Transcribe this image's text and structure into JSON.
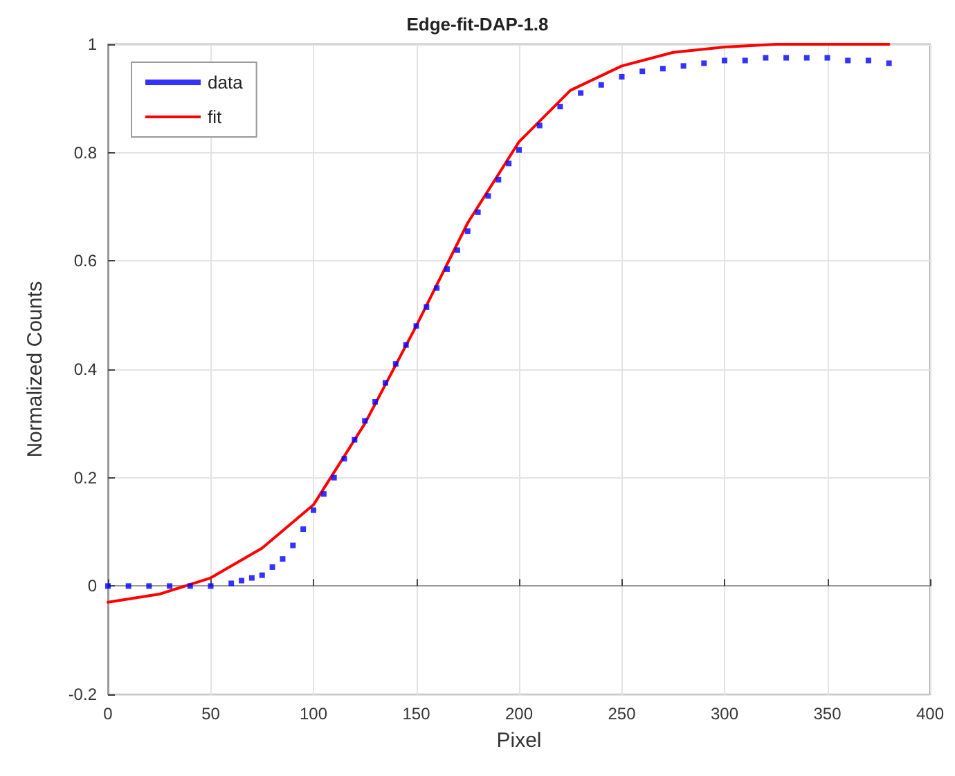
{
  "chart_data": {
    "type": "line",
    "title": "Edge-fit-DAP-1.8",
    "xlabel": "Pixel",
    "ylabel": "Normalized Counts",
    "xlim": [
      0,
      400
    ],
    "xticks": [
      0,
      50,
      100,
      150,
      200,
      250,
      300,
      350,
      400
    ],
    "ylim": [
      -0.2,
      1
    ],
    "yticks": [
      -0.2,
      0,
      0.2,
      0.4,
      0.6,
      0.8,
      1
    ],
    "grid": true,
    "legend": "top left",
    "series": [
      {
        "name": "data",
        "type": "scatter",
        "marker": "square",
        "color": "#0000ff",
        "x": [
          0,
          10,
          20,
          30,
          40,
          50,
          60,
          65,
          70,
          75,
          80,
          85,
          90,
          95,
          100,
          105,
          110,
          115,
          120,
          125,
          130,
          135,
          140,
          145,
          150,
          155,
          160,
          165,
          170,
          175,
          180,
          185,
          190,
          195,
          200,
          210,
          220,
          230,
          240,
          250,
          260,
          270,
          280,
          290,
          300,
          310,
          320,
          330,
          340,
          350,
          360,
          370,
          380
        ],
        "values": [
          0,
          0,
          0,
          0,
          0,
          0,
          0.005,
          0.01,
          0.015,
          0.02,
          0.035,
          0.05,
          0.075,
          0.105,
          0.14,
          0.17,
          0.2,
          0.235,
          0.27,
          0.305,
          0.34,
          0.375,
          0.41,
          0.445,
          0.48,
          0.515,
          0.55,
          0.585,
          0.62,
          0.655,
          0.69,
          0.72,
          0.75,
          0.78,
          0.805,
          0.85,
          0.885,
          0.91,
          0.925,
          0.94,
          0.95,
          0.955,
          0.96,
          0.965,
          0.97,
          0.97,
          0.975,
          0.975,
          0.975,
          0.975,
          0.97,
          0.97,
          0.965
        ]
      },
      {
        "name": "fit",
        "marker": "none",
        "line_style": "solid",
        "color": "#ff0000",
        "x": [
          0,
          25,
          50,
          75,
          100,
          125,
          150,
          175,
          200,
          225,
          250,
          275,
          300,
          325,
          350,
          380
        ],
        "values": [
          -0.03,
          -0.015,
          0.015,
          0.07,
          0.15,
          0.3,
          0.48,
          0.67,
          0.82,
          0.915,
          0.96,
          0.985,
          0.995,
          1,
          1,
          1
        ]
      }
    ]
  }
}
